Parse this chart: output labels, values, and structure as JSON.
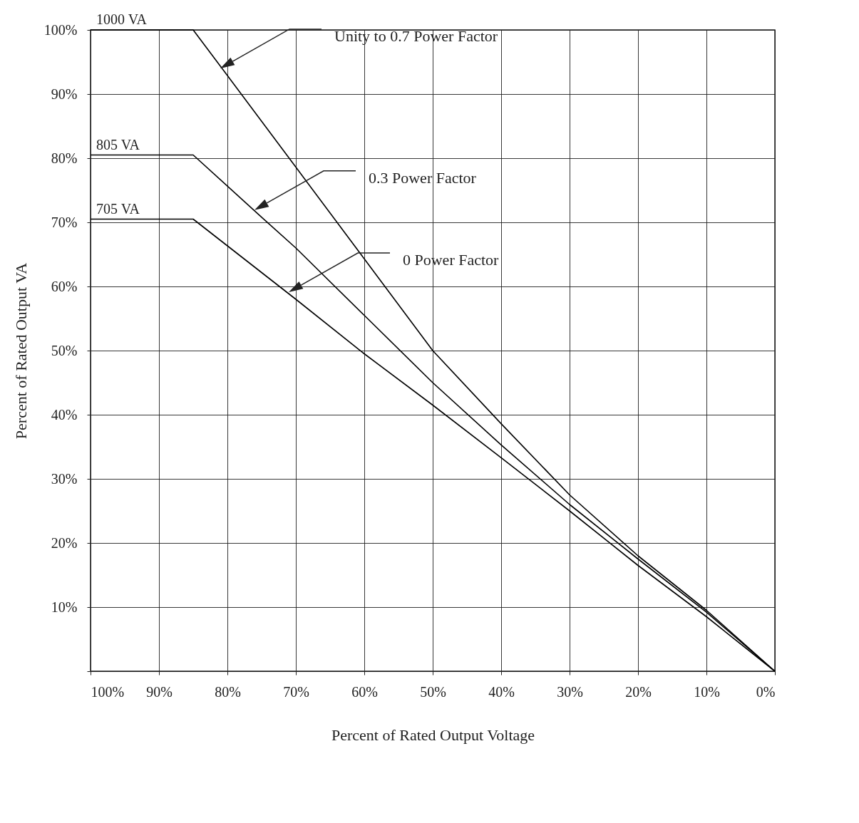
{
  "chart_data": {
    "type": "line",
    "xlabel": "Percent of Rated Output Voltage",
    "ylabel": "Percent of Rated Output VA",
    "xlim": [
      100,
      0
    ],
    "ylim": [
      0,
      100
    ],
    "xticks": [
      {
        "value": 100,
        "label": "100%"
      },
      {
        "value": 90,
        "label": "90%"
      },
      {
        "value": 80,
        "label": "80%"
      },
      {
        "value": 70,
        "label": "70%"
      },
      {
        "value": 60,
        "label": "60%"
      },
      {
        "value": 50,
        "label": "50%"
      },
      {
        "value": 40,
        "label": "40%"
      },
      {
        "value": 30,
        "label": "30%"
      },
      {
        "value": 20,
        "label": "20%"
      },
      {
        "value": 10,
        "label": "10%"
      },
      {
        "value": 0,
        "label": "0%"
      }
    ],
    "yticks": [
      {
        "value": 0,
        "label": null
      },
      {
        "value": 10,
        "label": "10%"
      },
      {
        "value": 20,
        "label": "20%"
      },
      {
        "value": 30,
        "label": "30%"
      },
      {
        "value": 40,
        "label": "40%"
      },
      {
        "value": 50,
        "label": "50%"
      },
      {
        "value": 60,
        "label": "60%"
      },
      {
        "value": 70,
        "label": "70%"
      },
      {
        "value": 80,
        "label": "80%"
      },
      {
        "value": 90,
        "label": "90%"
      },
      {
        "value": 100,
        "label": "100%"
      }
    ],
    "grid": true,
    "series": [
      {
        "name": "1000 VA",
        "color": "#000000",
        "x": [
          100,
          85,
          80,
          70,
          60,
          50,
          40,
          30,
          20,
          10,
          0
        ],
        "values": [
          100,
          100,
          92.9,
          78.6,
          64.3,
          50,
          38.6,
          27.5,
          18,
          9.5,
          0
        ]
      },
      {
        "name": "805 VA",
        "color": "#000000",
        "x": [
          100,
          85,
          75,
          70,
          60,
          50,
          40,
          30,
          20,
          10,
          0
        ],
        "values": [
          80.5,
          80.5,
          70.8,
          66,
          55.5,
          45,
          35.3,
          26,
          17.5,
          9.2,
          0
        ]
      },
      {
        "name": "705 VA",
        "color": "#000000",
        "x": [
          100,
          85,
          70,
          60,
          50,
          40,
          30,
          20,
          10,
          0
        ],
        "values": [
          70.5,
          70.5,
          58,
          49.5,
          41.5,
          33.3,
          25,
          16.5,
          8.5,
          0
        ]
      }
    ],
    "annotations": [
      "Unity to 0.7 Power Factor",
      "0.3 Power Factor",
      "0 Power Factor"
    ]
  }
}
